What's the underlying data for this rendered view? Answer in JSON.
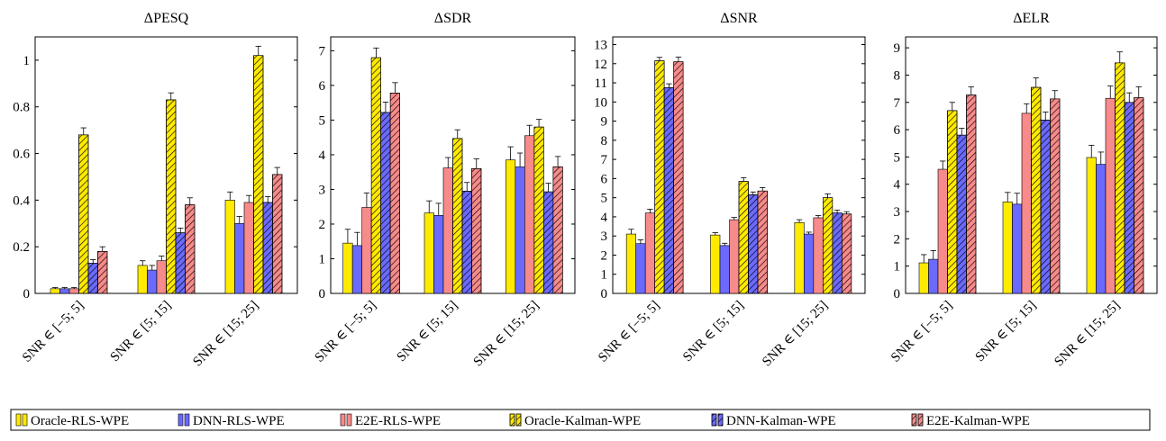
{
  "colors": {
    "oracle": "#ffea00",
    "dnn": "#6a6aff",
    "e2e": "#f78a8a"
  },
  "chart_data": [
    {
      "type": "bar",
      "title": "ΔPESQ",
      "categories": [
        "SNR ∈ [−5; 5]",
        "SNR ∈ [5; 15]",
        "SNR ∈ [15; 25]"
      ],
      "ylim": [
        0,
        1.1
      ],
      "yticks": [
        0,
        0.2,
        0.4,
        0.6,
        0.8,
        1
      ],
      "ytick_labels": [
        "0",
        "0.2",
        "0.4",
        "0.6",
        "0.8",
        "1"
      ],
      "series": [
        {
          "name": "Oracle-RLS-WPE",
          "values": [
            0.02,
            0.12,
            0.4
          ],
          "errors": [
            0.005,
            0.02,
            0.035
          ]
        },
        {
          "name": "DNN-RLS-WPE",
          "values": [
            0.02,
            0.1,
            0.3
          ],
          "errors": [
            0.005,
            0.02,
            0.03
          ]
        },
        {
          "name": "E2E-RLS-WPE",
          "values": [
            0.02,
            0.14,
            0.39
          ],
          "errors": [
            0.005,
            0.02,
            0.03
          ]
        },
        {
          "name": "Oracle-Kalman-WPE",
          "values": [
            0.68,
            0.83,
            1.02
          ],
          "errors": [
            0.03,
            0.03,
            0.04
          ]
        },
        {
          "name": "DNN-Kalman-WPE",
          "values": [
            0.13,
            0.26,
            0.39
          ],
          "errors": [
            0.015,
            0.02,
            0.025
          ]
        },
        {
          "name": "E2E-Kalman-WPE",
          "values": [
            0.18,
            0.38,
            0.51
          ],
          "errors": [
            0.02,
            0.03,
            0.03
          ]
        }
      ]
    },
    {
      "type": "bar",
      "title": "ΔSDR",
      "categories": [
        "SNR ∈ [−5; 5]",
        "SNR ∈ [5; 15]",
        "SNR ∈ [15; 25]"
      ],
      "ylim": [
        0,
        7.4
      ],
      "yticks": [
        0,
        1,
        2,
        3,
        4,
        5,
        6,
        7
      ],
      "ytick_labels": [
        "0",
        "1",
        "2",
        "3",
        "4",
        "5",
        "6",
        "7"
      ],
      "series": [
        {
          "name": "Oracle-RLS-WPE",
          "values": [
            1.45,
            2.32,
            3.85
          ],
          "errors": [
            0.4,
            0.35,
            0.38
          ]
        },
        {
          "name": "DNN-RLS-WPE",
          "values": [
            1.38,
            2.25,
            3.65
          ],
          "errors": [
            0.38,
            0.35,
            0.4
          ]
        },
        {
          "name": "E2E-RLS-WPE",
          "values": [
            2.48,
            3.62,
            4.55
          ],
          "errors": [
            0.42,
            0.3,
            0.3
          ]
        },
        {
          "name": "Oracle-Kalman-WPE",
          "values": [
            6.8,
            4.47,
            4.8
          ],
          "errors": [
            0.28,
            0.25,
            0.22
          ]
        },
        {
          "name": "DNN-Kalman-WPE",
          "values": [
            5.22,
            2.95,
            2.93
          ],
          "errors": [
            0.3,
            0.25,
            0.25
          ]
        },
        {
          "name": "E2E-Kalman-WPE",
          "values": [
            5.78,
            3.6,
            3.65
          ],
          "errors": [
            0.3,
            0.28,
            0.3
          ]
        }
      ]
    },
    {
      "type": "bar",
      "title": "ΔSNR",
      "categories": [
        "SNR ∈ [−5; 5]",
        "SNR ∈ [5; 15]",
        "SNR ∈ [15; 25]"
      ],
      "ylim": [
        0,
        13.4
      ],
      "yticks": [
        0,
        1,
        2,
        3,
        4,
        5,
        6,
        7,
        8,
        9,
        10,
        11,
        12,
        13
      ],
      "ytick_labels": [
        "0",
        "1",
        "2",
        "3",
        "4",
        "5",
        "6",
        "7",
        "8",
        "9",
        "10",
        "11",
        "12",
        "13"
      ],
      "series": [
        {
          "name": "Oracle-RLS-WPE",
          "values": [
            3.1,
            3.05,
            3.7
          ],
          "errors": [
            0.25,
            0.12,
            0.15
          ]
        },
        {
          "name": "DNN-RLS-WPE",
          "values": [
            2.6,
            2.5,
            3.1
          ],
          "errors": [
            0.2,
            0.12,
            0.1
          ]
        },
        {
          "name": "E2E-RLS-WPE",
          "values": [
            4.2,
            3.85,
            3.95
          ],
          "errors": [
            0.2,
            0.12,
            0.12
          ]
        },
        {
          "name": "Oracle-Kalman-WPE",
          "values": [
            12.15,
            5.85,
            5.0
          ],
          "errors": [
            0.18,
            0.2,
            0.2
          ]
        },
        {
          "name": "DNN-Kalman-WPE",
          "values": [
            10.75,
            5.15,
            4.2
          ],
          "errors": [
            0.2,
            0.15,
            0.15
          ]
        },
        {
          "name": "E2E-Kalman-WPE",
          "values": [
            12.1,
            5.35,
            4.15
          ],
          "errors": [
            0.25,
            0.18,
            0.12
          ]
        }
      ]
    },
    {
      "type": "bar",
      "title": "ΔELR",
      "categories": [
        "SNR ∈ [−5; 5]",
        "SNR ∈ [5; 15]",
        "SNR ∈ [15; 25]"
      ],
      "ylim": [
        0,
        9.4
      ],
      "yticks": [
        0,
        1,
        2,
        3,
        4,
        5,
        6,
        7,
        8,
        9
      ],
      "ytick_labels": [
        "0",
        "1",
        "2",
        "3",
        "4",
        "5",
        "6",
        "7",
        "8",
        "9"
      ],
      "series": [
        {
          "name": "Oracle-RLS-WPE",
          "values": [
            1.12,
            3.35,
            4.98
          ],
          "errors": [
            0.3,
            0.35,
            0.45
          ]
        },
        {
          "name": "DNN-RLS-WPE",
          "values": [
            1.25,
            3.27,
            4.73
          ],
          "errors": [
            0.32,
            0.4,
            0.45
          ]
        },
        {
          "name": "E2E-RLS-WPE",
          "values": [
            4.55,
            6.6,
            7.15
          ],
          "errors": [
            0.3,
            0.35,
            0.45
          ]
        },
        {
          "name": "Oracle-Kalman-WPE",
          "values": [
            6.7,
            7.55,
            8.45
          ],
          "errors": [
            0.3,
            0.35,
            0.4
          ]
        },
        {
          "name": "DNN-Kalman-WPE",
          "values": [
            5.8,
            6.35,
            7.0
          ],
          "errors": [
            0.25,
            0.3,
            0.35
          ]
        },
        {
          "name": "E2E-Kalman-WPE",
          "values": [
            7.27,
            7.13,
            7.17
          ],
          "errors": [
            0.3,
            0.3,
            0.4
          ]
        }
      ]
    }
  ],
  "legend": {
    "items": [
      {
        "label": "Oracle-RLS-WPE",
        "color": "#ffea00",
        "hatched": false
      },
      {
        "label": "DNN-RLS-WPE",
        "color": "#6a6aff",
        "hatched": false
      },
      {
        "label": "E2E-RLS-WPE",
        "color": "#f78a8a",
        "hatched": false
      },
      {
        "label": "Oracle-Kalman-WPE",
        "color": "#ffea00",
        "hatched": true
      },
      {
        "label": "DNN-Kalman-WPE",
        "color": "#6a6aff",
        "hatched": true
      },
      {
        "label": "E2E-Kalman-WPE",
        "color": "#f78a8a",
        "hatched": true
      }
    ]
  }
}
